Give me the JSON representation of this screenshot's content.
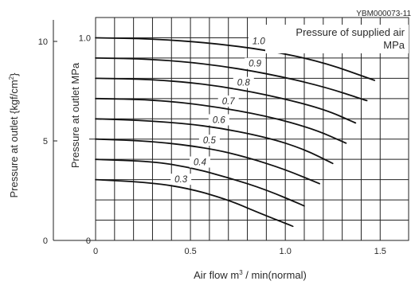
{
  "image_id": "YBM000073-11",
  "chart_data": {
    "type": "line",
    "title": "",
    "legend_title_line1": "Pressure of supplied air",
    "legend_title_line2": "MPa",
    "xlabel": "Air flow m³ / min(normal)",
    "xlabel_parts": {
      "base": "Air flow m",
      "sup": "3",
      "rest": " / min(normal)"
    },
    "ylabel": "Pressure at outlet MPa",
    "y2label": "Pressure at outlet {kgf/cm²}",
    "y2label_parts": {
      "base": "Pressure at outlet {kgf/cm",
      "sup": "2",
      "rest": "}"
    },
    "xlim": [
      0,
      1.65
    ],
    "ylim": [
      0,
      1.1
    ],
    "x_ticks": [
      {
        "v": 0,
        "t": "0"
      },
      {
        "v": 0.5,
        "t": "0.5"
      },
      {
        "v": 1.0,
        "t": "1.0"
      },
      {
        "v": 1.5,
        "t": "1.5"
      }
    ],
    "y_ticks": [
      {
        "v": 0,
        "t": "0"
      },
      {
        "v": 1.0,
        "t": "1.0"
      }
    ],
    "y2_ticks": [
      {
        "v": 0,
        "t": "0"
      },
      {
        "v": 5,
        "t": "5"
      },
      {
        "v": 10,
        "t": "10"
      }
    ],
    "y2lim": [
      0,
      11.2
    ],
    "grid_x_step": 0.1,
    "grid_y_step": 0.1,
    "grid": true,
    "series": [
      {
        "name": "1.0",
        "label": "1.0",
        "x": [
          0,
          0.3,
          0.6,
          0.9,
          1.2,
          1.47
        ],
        "y": [
          1.0,
          0.995,
          0.975,
          0.94,
          0.88,
          0.79
        ]
      },
      {
        "name": "0.9",
        "label": "0.9",
        "x": [
          0,
          0.3,
          0.6,
          0.9,
          1.2,
          1.43
        ],
        "y": [
          0.9,
          0.895,
          0.87,
          0.825,
          0.76,
          0.69
        ]
      },
      {
        "name": "0.8",
        "label": "0.8",
        "x": [
          0,
          0.3,
          0.6,
          0.9,
          1.2,
          1.37
        ],
        "y": [
          0.8,
          0.795,
          0.77,
          0.72,
          0.65,
          0.58
        ]
      },
      {
        "name": "0.7",
        "label": "0.7",
        "x": [
          0,
          0.3,
          0.6,
          0.9,
          1.15,
          1.32
        ],
        "y": [
          0.7,
          0.695,
          0.665,
          0.615,
          0.55,
          0.48
        ]
      },
      {
        "name": "0.6",
        "label": "0.6",
        "x": [
          0,
          0.3,
          0.6,
          0.9,
          1.1,
          1.25
        ],
        "y": [
          0.6,
          0.59,
          0.565,
          0.51,
          0.45,
          0.38
        ]
      },
      {
        "name": "0.5",
        "label": "0.5",
        "x": [
          0,
          0.3,
          0.6,
          0.8,
          1.0,
          1.18
        ],
        "y": [
          0.5,
          0.49,
          0.455,
          0.41,
          0.35,
          0.28
        ]
      },
      {
        "name": "0.4",
        "label": "0.4",
        "x": [
          0,
          0.3,
          0.5,
          0.7,
          0.9,
          1.1
        ],
        "y": [
          0.4,
          0.39,
          0.36,
          0.31,
          0.25,
          0.17
        ]
      },
      {
        "name": "0.3",
        "label": "0.3",
        "x": [
          0,
          0.3,
          0.5,
          0.7,
          0.85,
          1.04
        ],
        "y": [
          0.3,
          0.285,
          0.255,
          0.2,
          0.14,
          0.07
        ]
      }
    ],
    "label_x": [
      0.86,
      0.84,
      0.78,
      0.7,
      0.65,
      0.6,
      0.55,
      0.45
    ]
  }
}
